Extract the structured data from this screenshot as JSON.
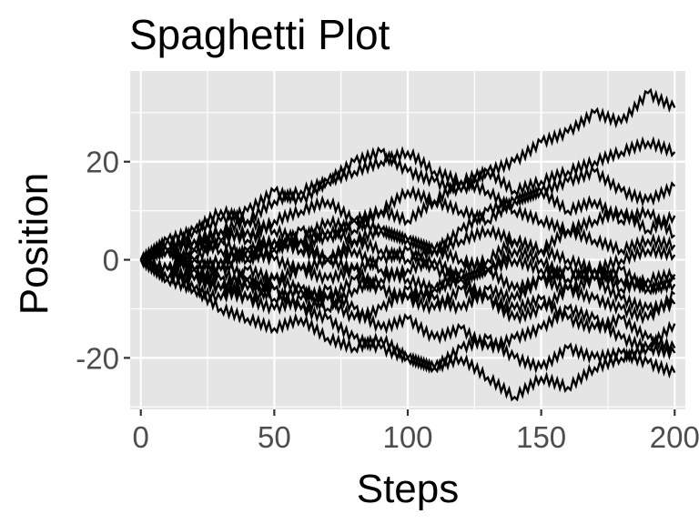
{
  "chart_data": {
    "type": "line",
    "title": "Spaghetti Plot",
    "xlabel": "Steps",
    "ylabel": "Position",
    "xlim": [
      -4,
      204
    ],
    "ylim": [
      -30.5,
      38.5
    ],
    "x_ticks": [
      0,
      50,
      100,
      150,
      200
    ],
    "y_ticks": [
      -20,
      0,
      20
    ],
    "grid": true,
    "legend": "none",
    "panel_background": "#e5e5e5",
    "grid_color": "#ffffff",
    "line_color": "#000000",
    "series": [
      {
        "x": [
          0,
          10,
          20,
          30,
          40,
          50,
          60,
          70,
          80,
          90,
          100,
          110,
          120,
          130,
          140,
          150,
          160,
          170,
          180,
          190,
          200
        ],
        "values": [
          0,
          2,
          -2,
          -4,
          -8,
          -6,
          -10,
          -12,
          -16,
          -18,
          -20,
          -22,
          -18,
          -16,
          -20,
          -22,
          -18,
          -20,
          -19,
          -21,
          -23
        ]
      },
      {
        "x": [
          0,
          10,
          20,
          30,
          40,
          50,
          60,
          70,
          80,
          90,
          100,
          110,
          120,
          130,
          140,
          150,
          160,
          170,
          180,
          190,
          200
        ],
        "values": [
          0,
          -4,
          -6,
          -10,
          -12,
          -14,
          -12,
          -16,
          -18,
          -16,
          -20,
          -22,
          -20,
          -24,
          -28,
          -24,
          -26,
          -22,
          -20,
          -18,
          -13
        ]
      },
      {
        "x": [
          0,
          10,
          20,
          30,
          40,
          50,
          60,
          70,
          80,
          90,
          100,
          110,
          120,
          130,
          140,
          150,
          160,
          170,
          180,
          190,
          200
        ],
        "values": [
          0,
          4,
          6,
          8,
          10,
          14,
          12,
          16,
          20,
          22,
          18,
          16,
          14,
          18,
          20,
          24,
          26,
          30,
          28,
          34,
          31
        ]
      },
      {
        "x": [
          0,
          10,
          20,
          30,
          40,
          50,
          60,
          70,
          80,
          90,
          100,
          110,
          120,
          130,
          140,
          150,
          160,
          170,
          180,
          190,
          200
        ],
        "values": [
          0,
          2,
          6,
          10,
          8,
          12,
          14,
          16,
          18,
          20,
          22,
          18,
          16,
          18,
          14,
          16,
          18,
          20,
          22,
          24,
          22
        ]
      },
      {
        "x": [
          0,
          10,
          20,
          30,
          40,
          50,
          60,
          70,
          80,
          90,
          100,
          110,
          120,
          130,
          140,
          150,
          160,
          170,
          180,
          190,
          200
        ],
        "values": [
          0,
          -2,
          2,
          4,
          0,
          2,
          6,
          4,
          8,
          6,
          4,
          2,
          6,
          10,
          12,
          14,
          16,
          18,
          14,
          12,
          15
        ]
      },
      {
        "x": [
          0,
          10,
          20,
          30,
          40,
          50,
          60,
          70,
          80,
          90,
          100,
          110,
          120,
          130,
          140,
          150,
          160,
          170,
          180,
          190,
          200
        ],
        "values": [
          0,
          2,
          -2,
          0,
          -4,
          -8,
          -6,
          -10,
          -6,
          -4,
          -2,
          0,
          -4,
          -2,
          2,
          0,
          -4,
          -2,
          -6,
          -4,
          -3
        ]
      },
      {
        "x": [
          0,
          10,
          20,
          30,
          40,
          50,
          60,
          70,
          80,
          90,
          100,
          110,
          120,
          130,
          140,
          150,
          160,
          170,
          180,
          190,
          200
        ],
        "values": [
          0,
          -2,
          -4,
          -2,
          -6,
          -4,
          -2,
          0,
          -2,
          -6,
          -8,
          -6,
          -4,
          -8,
          -10,
          -8,
          -12,
          -14,
          -12,
          -16,
          -18
        ]
      },
      {
        "x": [
          0,
          10,
          20,
          30,
          40,
          50,
          60,
          70,
          80,
          90,
          100,
          110,
          120,
          130,
          140,
          150,
          160,
          170,
          180,
          190,
          200
        ],
        "values": [
          0,
          2,
          0,
          4,
          6,
          2,
          4,
          0,
          2,
          -2,
          -4,
          -6,
          -2,
          0,
          4,
          2,
          6,
          8,
          10,
          6,
          9
        ]
      },
      {
        "x": [
          0,
          10,
          20,
          30,
          40,
          50,
          60,
          70,
          80,
          90,
          100,
          110,
          120,
          130,
          140,
          150,
          160,
          170,
          180,
          190,
          200
        ],
        "values": [
          0,
          -2,
          -6,
          -8,
          -4,
          -6,
          -10,
          -8,
          -12,
          -10,
          -6,
          -8,
          -10,
          -6,
          -8,
          -4,
          -6,
          -8,
          -10,
          -12,
          -7
        ]
      },
      {
        "x": [
          0,
          10,
          20,
          30,
          40,
          50,
          60,
          70,
          80,
          90,
          100,
          110,
          120,
          130,
          140,
          150,
          160,
          170,
          180,
          190,
          200
        ],
        "values": [
          0,
          4,
          2,
          6,
          8,
          6,
          4,
          8,
          6,
          10,
          8,
          12,
          10,
          8,
          12,
          14,
          10,
          12,
          8,
          10,
          5
        ]
      },
      {
        "x": [
          0,
          10,
          20,
          30,
          40,
          50,
          60,
          70,
          80,
          90,
          100,
          110,
          120,
          130,
          140,
          150,
          160,
          170,
          180,
          190,
          200
        ],
        "values": [
          0,
          -2,
          0,
          -2,
          2,
          0,
          -2,
          -4,
          -2,
          0,
          2,
          -2,
          -4,
          -2,
          -6,
          -4,
          -2,
          -4,
          -2,
          -6,
          -4
        ]
      },
      {
        "x": [
          0,
          10,
          20,
          30,
          40,
          50,
          60,
          70,
          80,
          90,
          100,
          110,
          120,
          130,
          140,
          150,
          160,
          170,
          180,
          190,
          200
        ],
        "values": [
          0,
          2,
          4,
          2,
          0,
          4,
          2,
          6,
          4,
          2,
          0,
          2,
          4,
          6,
          4,
          2,
          0,
          -2,
          0,
          2,
          1
        ]
      },
      {
        "x": [
          0,
          10,
          20,
          30,
          40,
          50,
          60,
          70,
          80,
          90,
          100,
          110,
          120,
          130,
          140,
          150,
          160,
          170,
          180,
          190,
          200
        ],
        "values": [
          0,
          -4,
          -2,
          -6,
          -8,
          -10,
          -8,
          -6,
          -10,
          -14,
          -12,
          -16,
          -14,
          -18,
          -16,
          -14,
          -10,
          -12,
          -16,
          -18,
          -19
        ]
      },
      {
        "x": [
          0,
          10,
          20,
          30,
          40,
          50,
          60,
          70,
          80,
          90,
          100,
          110,
          120,
          130,
          140,
          150,
          160,
          170,
          180,
          190,
          200
        ],
        "values": [
          0,
          2,
          4,
          6,
          4,
          8,
          10,
          12,
          8,
          10,
          14,
          12,
          16,
          14,
          10,
          8,
          6,
          4,
          2,
          4,
          3
        ]
      },
      {
        "x": [
          0,
          10,
          20,
          30,
          40,
          50,
          60,
          70,
          80,
          90,
          100,
          110,
          120,
          130,
          140,
          150,
          160,
          170,
          180,
          190,
          200
        ],
        "values": [
          0,
          -2,
          -4,
          -6,
          -2,
          -4,
          -6,
          -8,
          -4,
          -6,
          -8,
          -10,
          -6,
          -8,
          -12,
          -10,
          -6,
          -4,
          -8,
          -10,
          -9
        ]
      },
      {
        "x": [
          0,
          10,
          20,
          30,
          40,
          50,
          60,
          70,
          80,
          90,
          100,
          110,
          120,
          130,
          140,
          150,
          160,
          170,
          180,
          190,
          200
        ],
        "values": [
          0,
          2,
          -2,
          0,
          2,
          4,
          2,
          0,
          4,
          6,
          4,
          2,
          0,
          -2,
          0,
          -2,
          -4,
          -2,
          -4,
          -6,
          -5
        ]
      }
    ]
  }
}
